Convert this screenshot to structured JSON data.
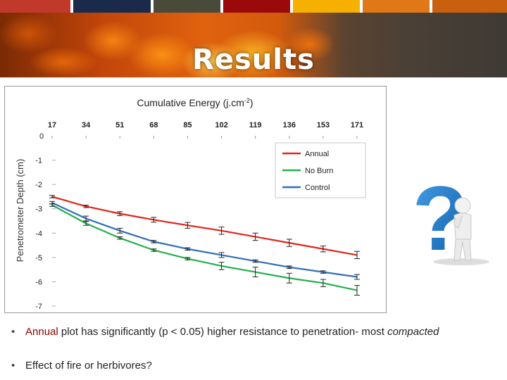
{
  "top_bar_colors": [
    "#c0392b",
    "#1a2a4a",
    "#4a4a3a",
    "#9a0a0a",
    "#f5b000",
    "#e07818",
    "#c86010"
  ],
  "header": {
    "title": "Results"
  },
  "chart_data": {
    "type": "line",
    "title": "Cumulative Energy (j.cm-2)",
    "title_main": "Cumulative Energy (j.cm",
    "title_sup": "-2",
    "title_end": ")",
    "ylabel": "Penetrometer Depth (cm)",
    "x": [
      17,
      34,
      51,
      68,
      85,
      102,
      119,
      136,
      153,
      171
    ],
    "x_top_extra_label": "0",
    "xlim": [
      0,
      171
    ],
    "ylim": [
      -7,
      0
    ],
    "y_ticks": [
      -1,
      -2,
      -3,
      -4,
      -5,
      -6,
      -7
    ],
    "grid": false,
    "legend_position": "top-right",
    "series": [
      {
        "name": "Annual",
        "color": "#e0261a",
        "values": [
          -2.5,
          -2.9,
          -3.2,
          -3.45,
          -3.68,
          -3.9,
          -4.15,
          -4.4,
          -4.65,
          -4.9
        ],
        "error": [
          0.05,
          0.05,
          0.08,
          0.1,
          0.12,
          0.15,
          0.15,
          0.15,
          0.12,
          0.15
        ]
      },
      {
        "name": "No Burn",
        "color": "#22b04b",
        "values": [
          -2.85,
          -3.6,
          -4.2,
          -4.7,
          -5.05,
          -5.35,
          -5.6,
          -5.85,
          -6.05,
          -6.35
        ],
        "error": [
          0.05,
          0.08,
          0.05,
          0.05,
          0.05,
          0.15,
          0.2,
          0.2,
          0.15,
          0.2
        ]
      },
      {
        "name": "Control",
        "color": "#2f6fb4",
        "values": [
          -2.75,
          -3.4,
          -3.9,
          -4.35,
          -4.65,
          -4.9,
          -5.15,
          -5.4,
          -5.6,
          -5.8
        ],
        "error": [
          0.05,
          0.1,
          0.1,
          0.05,
          0.05,
          0.1,
          0.05,
          0.05,
          0.05,
          0.1
        ]
      }
    ]
  },
  "bullets": [
    {
      "lead": "Annual",
      "text": " plot has significantly (p < 0.05) higher resistance to penetration- most ",
      "emph": "compacted"
    },
    {
      "text": "Effect of fire or herbivores?"
    }
  ],
  "bullet_char": "•",
  "question_mark_char": "?"
}
